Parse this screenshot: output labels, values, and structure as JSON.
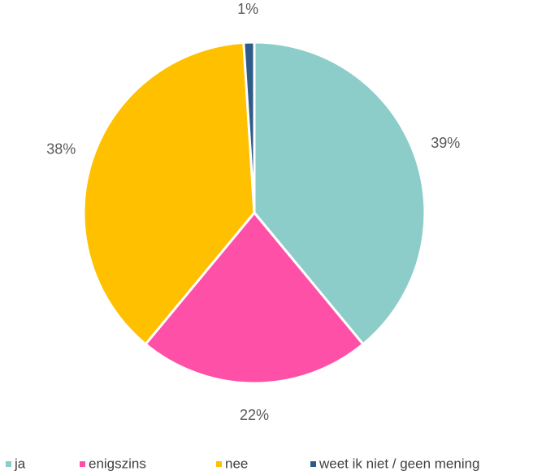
{
  "chart_data": {
    "type": "pie",
    "categories": [
      "ja",
      "enigszins",
      "nee",
      "weet ik niet / geen mening"
    ],
    "values": [
      39,
      22,
      38,
      1
    ],
    "value_labels": [
      "39%",
      "22%",
      "38%",
      "1%"
    ],
    "colors": [
      "#8ccdc9",
      "#ff50a8",
      "#ffc000",
      "#2e5b8a"
    ],
    "legend": "bottom"
  }
}
